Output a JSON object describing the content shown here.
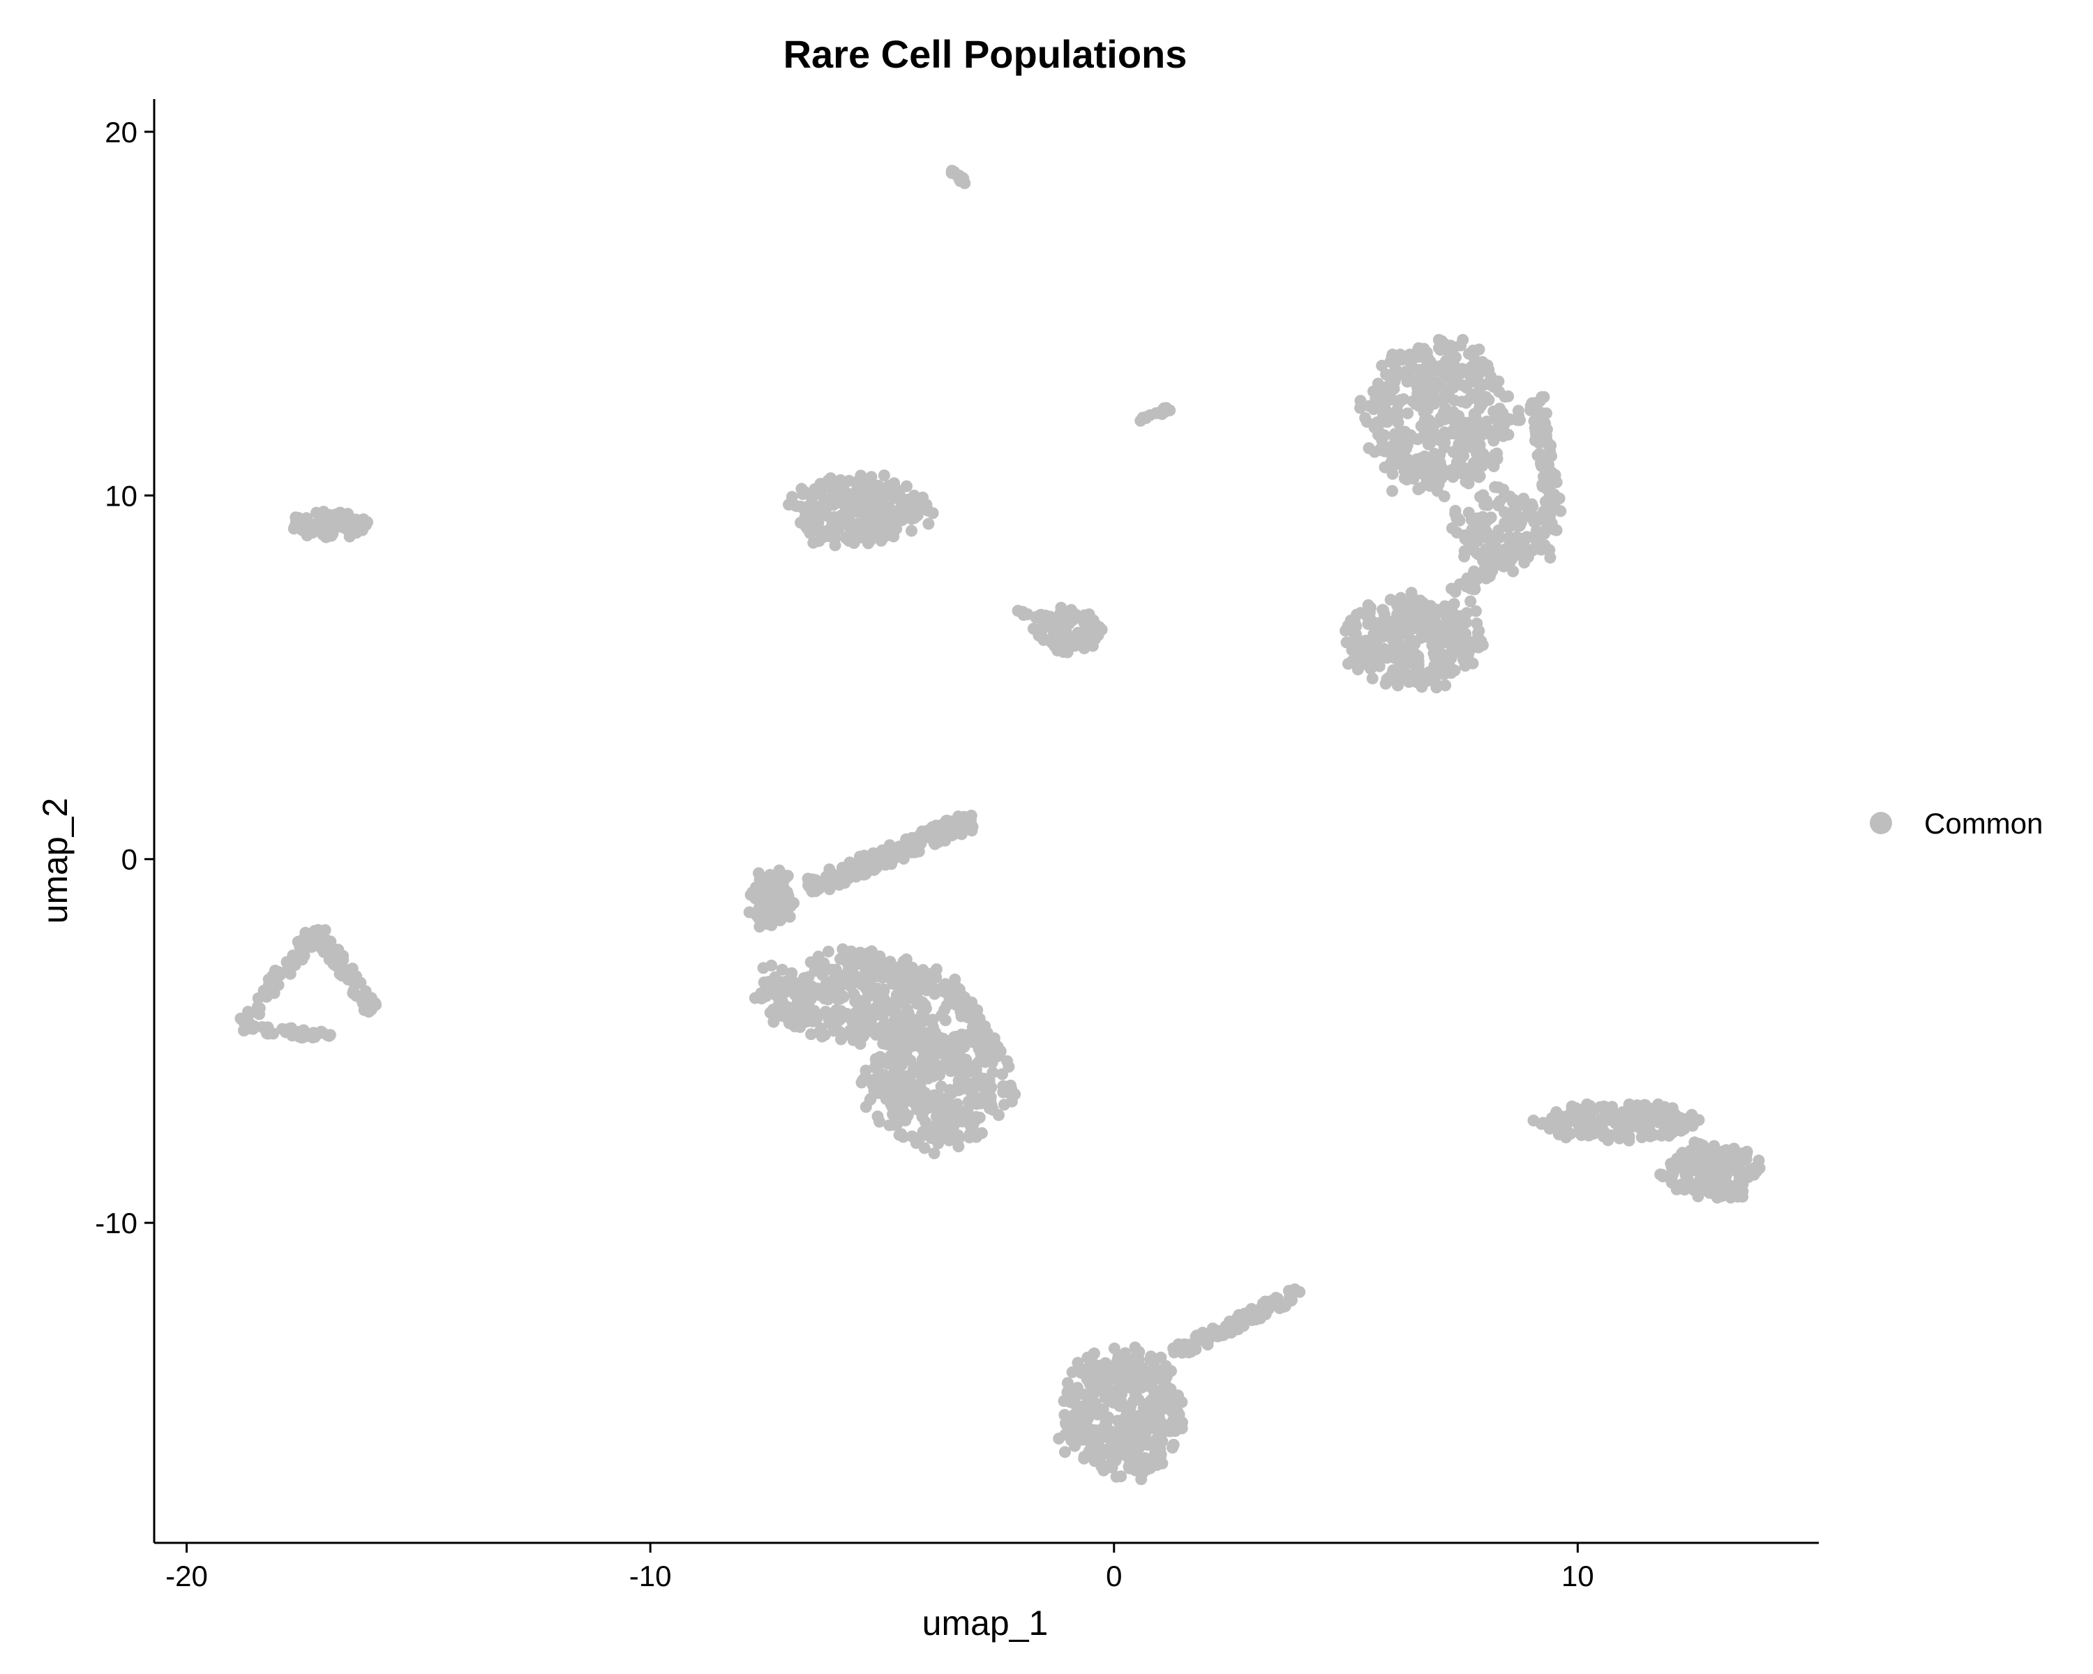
{
  "chart_data": {
    "type": "scatter",
    "title": "Rare Cell Populations",
    "xlabel": "umap_1",
    "ylabel": "umap_2",
    "xlim": [
      -20.7,
      15.2
    ],
    "ylim": [
      -18.8,
      20.9
    ],
    "x_ticks": [
      -20,
      -10,
      0,
      10
    ],
    "y_ticks": [
      -10,
      0,
      10,
      20
    ],
    "grid": false,
    "legend": {
      "position": "right",
      "entries": [
        "Common"
      ]
    },
    "point_color": "#bebebe",
    "series": [
      {
        "name": "Common",
        "clusters": [
          {
            "shape": "ellipse",
            "cx": 7.0,
            "cy": 12.2,
            "rx": 1.6,
            "ry": 2.0,
            "n": 420
          },
          {
            "shape": "ellipse",
            "cx": 8.4,
            "cy": 9.0,
            "rx": 1.2,
            "ry": 1.1,
            "n": 140
          },
          {
            "shape": "ellipse",
            "cx": 6.5,
            "cy": 6.0,
            "rx": 1.5,
            "ry": 1.2,
            "n": 300
          },
          {
            "shape": "ellipse",
            "cx": -5.5,
            "cy": 9.6,
            "rx": 1.5,
            "ry": 0.9,
            "n": 240
          },
          {
            "shape": "ellipse",
            "cx": -16.9,
            "cy": 9.2,
            "rx": 0.9,
            "ry": 0.35,
            "n": 90
          },
          {
            "shape": "ellipse",
            "cx": -1.0,
            "cy": 6.3,
            "rx": 0.7,
            "ry": 0.6,
            "n": 90
          },
          {
            "shape": "ellipse",
            "cx": -5.6,
            "cy": -3.8,
            "rx": 2.0,
            "ry": 1.2,
            "n": 380
          },
          {
            "shape": "ellipse",
            "cx": -3.8,
            "cy": -6.2,
            "rx": 1.6,
            "ry": 1.6,
            "n": 360
          },
          {
            "shape": "ellipse",
            "cx": -7.4,
            "cy": -1.1,
            "rx": 0.5,
            "ry": 0.8,
            "n": 90
          },
          {
            "shape": "ellipse",
            "cx": 0.2,
            "cy": -15.2,
            "rx": 1.3,
            "ry": 1.7,
            "n": 420
          },
          {
            "shape": "ellipse",
            "cx": 12.9,
            "cy": -8.6,
            "rx": 1.0,
            "ry": 0.8,
            "n": 180
          },
          {
            "shape": "ellipse",
            "cx": 10.8,
            "cy": -7.2,
            "rx": 1.7,
            "ry": 0.5,
            "n": 190
          },
          {
            "shape": "segment",
            "x1": -6.6,
            "y1": -0.8,
            "x2": -3.0,
            "y2": 1.1,
            "width": 0.5,
            "n": 180
          },
          {
            "shape": "segment",
            "x1": -17.2,
            "y1": -1.9,
            "x2": -18.8,
            "y2": -4.6,
            "width": 0.35,
            "n": 50
          },
          {
            "shape": "segment",
            "x1": -17.2,
            "y1": -1.9,
            "x2": -15.9,
            "y2": -4.3,
            "width": 0.35,
            "n": 60
          },
          {
            "shape": "segment",
            "x1": -18.8,
            "y1": -4.6,
            "x2": -16.8,
            "y2": -4.9,
            "width": 0.25,
            "n": 40
          },
          {
            "shape": "segment",
            "x1": 1.3,
            "y1": -13.6,
            "x2": 4.0,
            "y2": -11.9,
            "width": 0.35,
            "n": 90
          },
          {
            "shape": "segment",
            "x1": -3.6,
            "y1": 19.0,
            "x2": -3.2,
            "y2": 18.6,
            "width": 0.1,
            "n": 12
          },
          {
            "shape": "segment",
            "x1": 0.5,
            "y1": 12.0,
            "x2": 1.2,
            "y2": 12.4,
            "width": 0.12,
            "n": 15
          },
          {
            "shape": "segment",
            "x1": 9.1,
            "y1": 12.7,
            "x2": 9.5,
            "y2": 9.4,
            "width": 0.35,
            "n": 70
          },
          {
            "shape": "segment",
            "x1": 9.0,
            "y1": 8.9,
            "x2": 7.4,
            "y2": 7.3,
            "width": 0.4,
            "n": 50
          },
          {
            "shape": "segment",
            "x1": -3.6,
            "y1": -3.3,
            "x2": -2.4,
            "y2": -5.6,
            "width": 0.4,
            "n": 60
          },
          {
            "shape": "segment",
            "x1": -2.1,
            "y1": 6.8,
            "x2": -1.0,
            "y2": 6.5,
            "width": 0.12,
            "n": 15
          }
        ]
      }
    ]
  }
}
